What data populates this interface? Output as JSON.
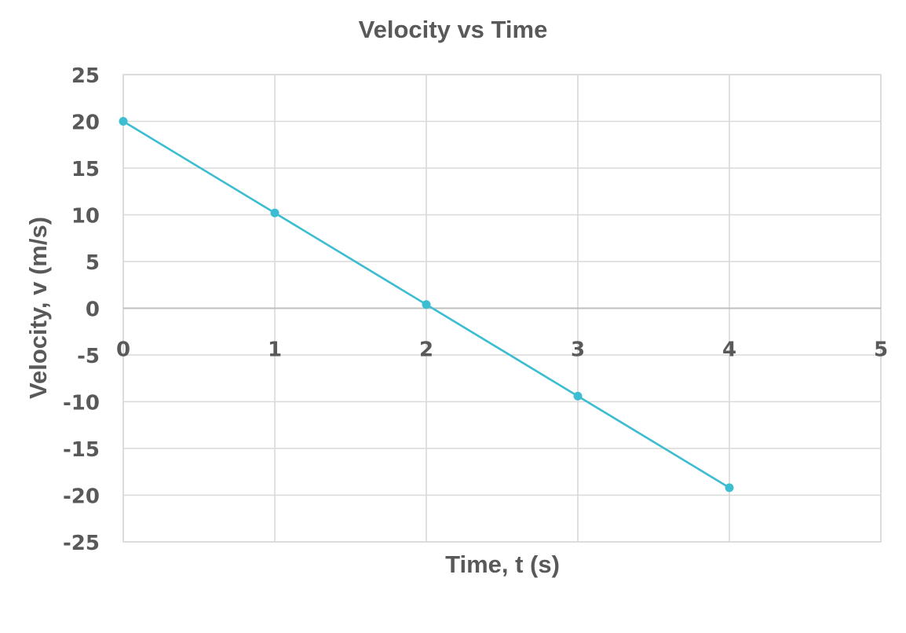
{
  "chart_data": {
    "type": "line",
    "title": "Velocity  vs Time",
    "xlabel": "Time, t (s)",
    "ylabel": "Velocity, v (m/s)",
    "xlim": [
      0,
      5
    ],
    "ylim": [
      -25,
      25
    ],
    "x_ticks": [
      "0",
      "1",
      "2",
      "3",
      "4",
      "5"
    ],
    "y_ticks": [
      "25",
      "20",
      "15",
      "10",
      "5",
      "0",
      "-5",
      "-10",
      "-15",
      "-20",
      "-25"
    ],
    "grid": true,
    "x_tick_labels_position": "just below the zero line",
    "legend": "none",
    "series": [
      {
        "color": "#3dbdd1",
        "marker": "circle",
        "x": [
          0,
          1,
          2,
          3,
          4
        ],
        "y": [
          20,
          10.2,
          0.4,
          -9.4,
          -19.2
        ]
      }
    ]
  }
}
